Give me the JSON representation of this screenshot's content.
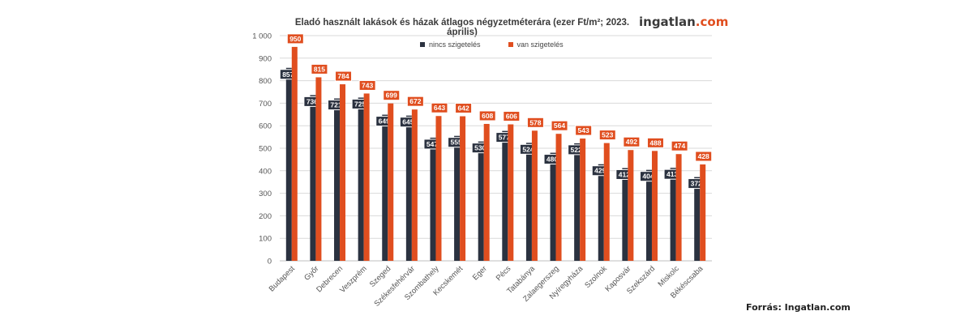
{
  "title": "Eladó használt lakások és házak átlagos négyzetméterára (ezer Ft/m²; 2023. április)",
  "logo": {
    "main": "ingatlan",
    "accent": ".com"
  },
  "source": "Forrás: Ingatlan.com",
  "colors": {
    "series1": "#2b3240",
    "series2": "#e04e1f",
    "grid": "#d9d9d9",
    "axis_text": "#555555"
  },
  "chart_data": {
    "type": "bar",
    "title": "Eladó használt lakások és házak átlagos négyzetméterára (ezer Ft/m²; 2023. április)",
    "categories": [
      "Budapest",
      "Győr",
      "Debrecen",
      "Veszprém",
      "Szeged",
      "Székesfehérvár",
      "Szombathely",
      "Kecskemét",
      "Eger",
      "Pécs",
      "Tatabánya",
      "Zalaegerszeg",
      "Nyíregyháza",
      "Szolnok",
      "Kaposvár",
      "Szekszárd",
      "Miskolc",
      "Békéscsaba"
    ],
    "series": [
      {
        "name": "nincs szigetelés",
        "values": [
          857,
          736,
          721,
          725,
          649,
          645,
          547,
          555,
          530,
          577,
          524,
          480,
          522,
          429,
          412,
          404,
          413,
          372
        ]
      },
      {
        "name": "van szigetelés",
        "values": [
          950,
          815,
          784,
          743,
          699,
          672,
          643,
          642,
          608,
          606,
          578,
          564,
          543,
          523,
          492,
          488,
          474,
          428
        ]
      }
    ],
    "ylim": [
      0,
      1000
    ],
    "yticks": [
      "0",
      "100",
      "200",
      "300",
      "400",
      "500",
      "600",
      "700",
      "800",
      "900",
      "1 000"
    ],
    "grid": true,
    "legend_position": "top-center"
  }
}
